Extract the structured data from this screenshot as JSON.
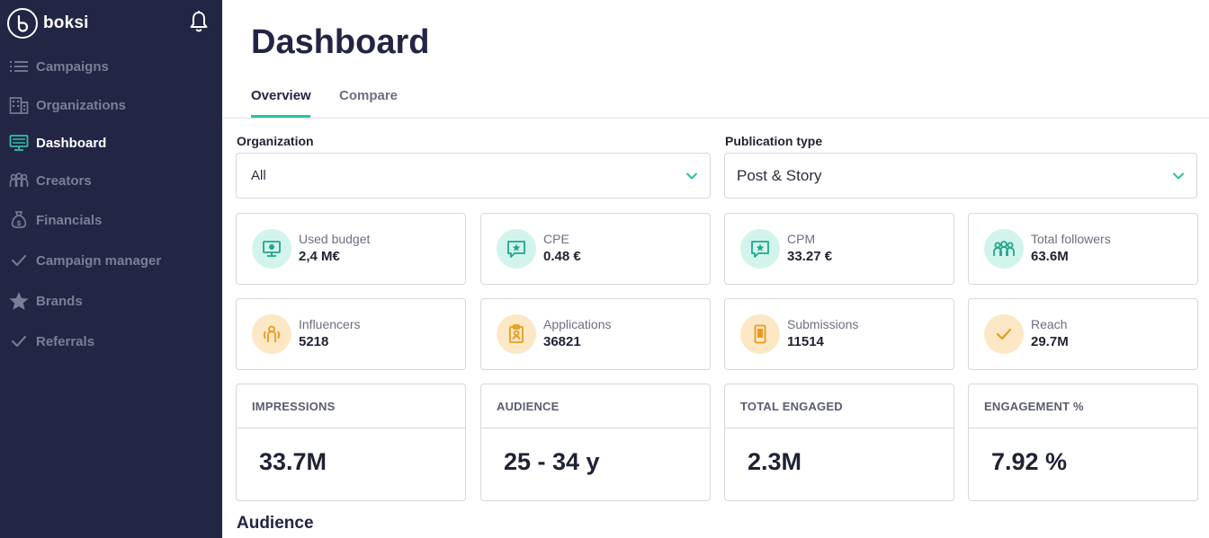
{
  "app": {
    "name": "boksi"
  },
  "sidebar": {
    "items": [
      {
        "label": "Campaigns",
        "icon": "list-icon",
        "active": false
      },
      {
        "label": "Organizations",
        "icon": "building-icon",
        "active": false
      },
      {
        "label": "Dashboard",
        "icon": "monitor-icon",
        "active": true
      },
      {
        "label": "Creators",
        "icon": "people-icon",
        "active": false
      },
      {
        "label": "Financials",
        "icon": "money-bag-icon",
        "active": false
      },
      {
        "label": "Campaign manager",
        "icon": "check-icon",
        "active": false
      },
      {
        "label": "Brands",
        "icon": "star-icon",
        "active": false
      },
      {
        "label": "Referrals",
        "icon": "check-icon",
        "active": false
      }
    ]
  },
  "page": {
    "title": "Dashboard",
    "tabs": [
      {
        "label": "Overview",
        "active": true
      },
      {
        "label": "Compare",
        "active": false
      }
    ]
  },
  "filters": {
    "organization": {
      "label": "Organization",
      "value": "All"
    },
    "publication_type": {
      "label": "Publication type",
      "value": "Post & Story"
    }
  },
  "stats": [
    {
      "title": "Used budget",
      "value": "2,4 M€",
      "icon": "monitor-money-icon",
      "tone": "teal"
    },
    {
      "title": "CPE",
      "value": "0.48 €",
      "icon": "star-chat-icon",
      "tone": "teal"
    },
    {
      "title": "CPM",
      "value": "33.27 €",
      "icon": "star-chat-icon",
      "tone": "teal"
    },
    {
      "title": "Total followers",
      "value": "63.6M",
      "icon": "group-icon",
      "tone": "teal"
    },
    {
      "title": "Influencers",
      "value": "5218",
      "icon": "influencer-icon",
      "tone": "orange"
    },
    {
      "title": "Applications",
      "value": "36821",
      "icon": "clipboard-user-icon",
      "tone": "orange"
    },
    {
      "title": "Submissions",
      "value": "11514",
      "icon": "phone-icon",
      "tone": "orange"
    },
    {
      "title": "Reach",
      "value": "29.7M",
      "icon": "check-icon",
      "tone": "orange"
    }
  ],
  "kpis": [
    {
      "title": "IMPRESSIONS",
      "value": "33.7M"
    },
    {
      "title": "AUDIENCE",
      "value": "25 - 34 y"
    },
    {
      "title": "TOTAL ENGAGED",
      "value": "2.3M"
    },
    {
      "title": "ENGAGEMENT %",
      "value": "7.92 %"
    }
  ],
  "sections": {
    "audience_title": "Audience"
  },
  "colors": {
    "sidebar_bg": "#232544",
    "accent": "#2cc1a4",
    "teal_bg": "#d3f4ec",
    "orange_bg": "#fde8c6",
    "orange_fg": "#e89a1c"
  }
}
